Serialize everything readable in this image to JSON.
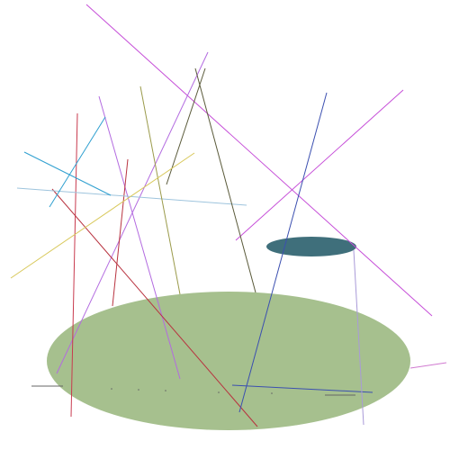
{
  "colors": {
    "background": "#ffffff",
    "large_ellipse": "#a6c08e",
    "small_ellipse": "#3f6f7b",
    "line_magenta": "#c64fd8",
    "line_violet": "#b36be0",
    "line_red": "#c83a4e",
    "line_crimson": "#b8323f",
    "line_blue": "#3b4fb0",
    "line_lightblue": "#9ec4dd",
    "line_cyan": "#2e9fd0",
    "line_olive": "#9a9a4a",
    "line_dark": "#5a5a3a",
    "line_yellow": "#d8c85a",
    "line_lavender": "#a99ad8",
    "line_pink": "#d07ad0",
    "line_gray": "#666666"
  }
}
